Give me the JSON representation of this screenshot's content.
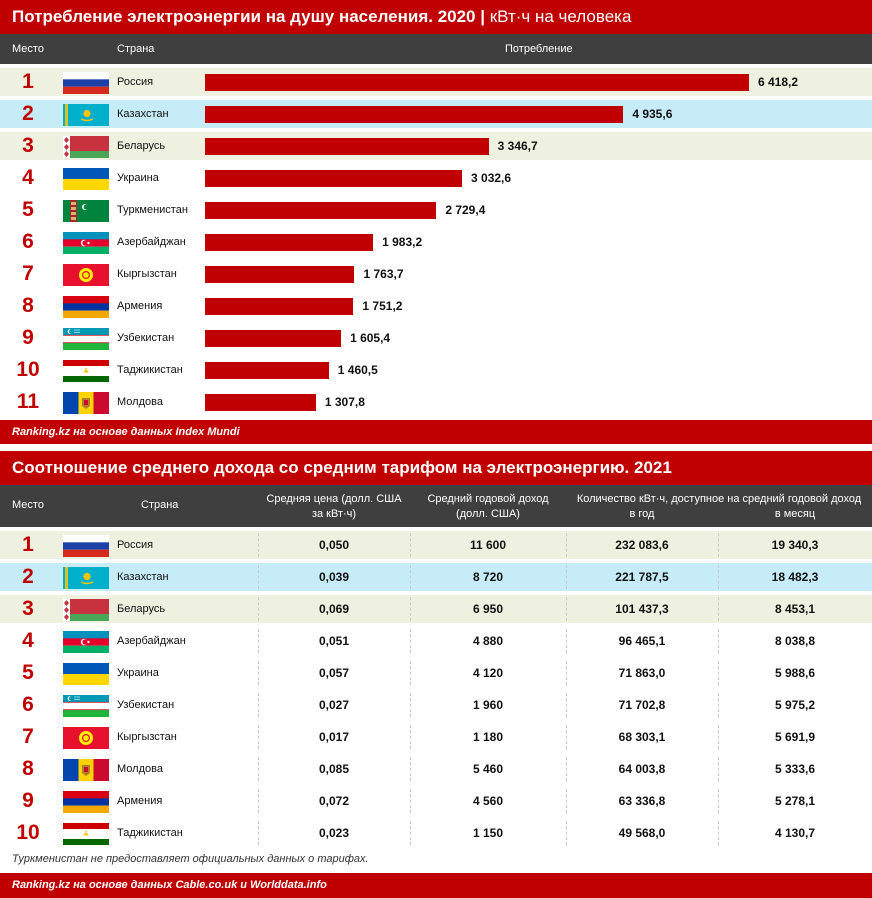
{
  "chart_data": [
    {
      "type": "bar",
      "title": "Потребление электроэнергии на душу населения. 2020",
      "subtitle": "кВт·ч на человека",
      "columns": [
        "Место",
        "Страна",
        "Потребление"
      ],
      "rows": [
        {
          "rank": "1",
          "country": "Россия",
          "flag": "russia",
          "label": "6 418,2",
          "value": 6418.2
        },
        {
          "rank": "2",
          "country": "Казахстан",
          "flag": "kazakhstan",
          "label": "4 935,6",
          "value": 4935.6
        },
        {
          "rank": "3",
          "country": "Беларусь",
          "flag": "belarus",
          "label": "3 346,7",
          "value": 3346.7
        },
        {
          "rank": "4",
          "country": "Украина",
          "flag": "ukraine",
          "label": "3 032,6",
          "value": 3032.6
        },
        {
          "rank": "5",
          "country": "Туркменистан",
          "flag": "turkmenistan",
          "label": "2 729,4",
          "value": 2729.4
        },
        {
          "rank": "6",
          "country": "Азербайджан",
          "flag": "azerbaijan",
          "label": "1 983,2",
          "value": 1983.2
        },
        {
          "rank": "7",
          "country": "Кыргызстан",
          "flag": "kyrgyzstan",
          "label": "1 763,7",
          "value": 1763.7
        },
        {
          "rank": "8",
          "country": "Армения",
          "flag": "armenia",
          "label": "1 751,2",
          "value": 1751.2
        },
        {
          "rank": "9",
          "country": "Узбекистан",
          "flag": "uzbekistan",
          "label": "1 605,4",
          "value": 1605.4
        },
        {
          "rank": "10",
          "country": "Таджикистан",
          "flag": "tajikistan",
          "label": "1 460,5",
          "value": 1460.5
        },
        {
          "rank": "11",
          "country": "Молдова",
          "flag": "moldova",
          "label": "1 307,8",
          "value": 1307.8
        }
      ],
      "source": "Ranking.kz на основе данных Index Mundi"
    },
    {
      "type": "table",
      "title": "Соотношение среднего дохода со средним тарифом на электроэнергию. 2021",
      "columns": {
        "place": "Место",
        "country": "Страна",
        "price_l1": "Средняя цена (долл. США",
        "price_l2": "за кВт·ч)",
        "income_l1": "Средний годовой доход",
        "income_l2": "(долл. США)",
        "kwh_header": "Количество кВт·ч, доступное на средний годовой доход",
        "per_year": "в год",
        "per_month": "в месяц"
      },
      "rows": [
        {
          "rank": "1",
          "country": "Россия",
          "flag": "russia",
          "price": "0,050",
          "income": "11 600",
          "year": "232 083,6",
          "month": "19 340,3"
        },
        {
          "rank": "2",
          "country": "Казахстан",
          "flag": "kazakhstan",
          "price": "0,039",
          "income": "8 720",
          "year": "221 787,5",
          "month": "18 482,3"
        },
        {
          "rank": "3",
          "country": "Беларусь",
          "flag": "belarus",
          "price": "0,069",
          "income": "6 950",
          "year": "101 437,3",
          "month": "8 453,1"
        },
        {
          "rank": "4",
          "country": "Азербайджан",
          "flag": "azerbaijan",
          "price": "0,051",
          "income": "4 880",
          "year": "96 465,1",
          "month": "8 038,8"
        },
        {
          "rank": "5",
          "country": "Украина",
          "flag": "ukraine",
          "price": "0,057",
          "income": "4 120",
          "year": "71 863,0",
          "month": "5 988,6"
        },
        {
          "rank": "6",
          "country": "Узбекистан",
          "flag": "uzbekistan",
          "price": "0,027",
          "income": "1 960",
          "year": "71 702,8",
          "month": "5 975,2"
        },
        {
          "rank": "7",
          "country": "Кыргызстан",
          "flag": "kyrgyzstan",
          "price": "0,017",
          "income": "1 180",
          "year": "68 303,1",
          "month": "5 691,9"
        },
        {
          "rank": "8",
          "country": "Молдова",
          "flag": "moldova",
          "price": "0,085",
          "income": "5 460",
          "year": "64 003,8",
          "month": "5 333,6"
        },
        {
          "rank": "9",
          "country": "Армения",
          "flag": "armenia",
          "price": "0,072",
          "income": "4 560",
          "year": "63 336,8",
          "month": "5 278,1"
        },
        {
          "rank": "10",
          "country": "Таджикистан",
          "flag": "tajikistan",
          "price": "0,023",
          "income": "1 150",
          "year": "49 568,0",
          "month": "4 130,7"
        }
      ],
      "note": "Туркменистан не предоставляет официальных данных о тарифах.",
      "source": "Ranking.kz на основе данных Cable.co.uk и Worlddata.info"
    }
  ]
}
